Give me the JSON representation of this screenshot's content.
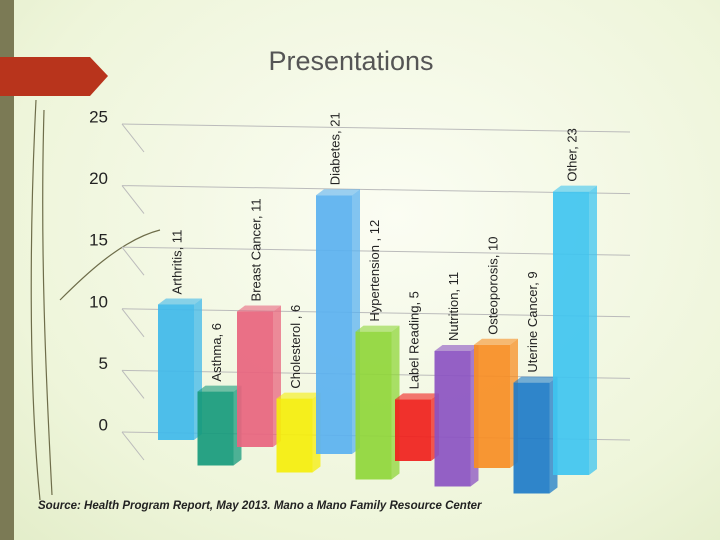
{
  "slide_title": "Presentations",
  "source": "Source: Health Program Report, May 2013. Mano a Mano Family Resource Center",
  "chart_data": {
    "type": "bar3d",
    "values": [
      11,
      6,
      11,
      6,
      21,
      12,
      5,
      11,
      10,
      9,
      23
    ],
    "value_labels": [
      "Arthritis, 11",
      "Asthma, 6",
      "Breast Cancer, 11",
      "Cholesterol , 6",
      "Diabetes, 21",
      "Hypertension , 12",
      "Label Reading, 5",
      "Nutrition, 11",
      "Osteoporosis, 10",
      "Uterine Cancer, 9",
      "Other, 23"
    ],
    "colors": [
      "#3fb8ea",
      "#179a7c",
      "#e8647e",
      "#f5ee0b",
      "#5ab1f0",
      "#8fd63a",
      "#f0201c",
      "#8b52c2",
      "#f78d24",
      "#1e7bc8",
      "#3fc4f0"
    ],
    "ylim": [
      0,
      25
    ],
    "yticks": [
      0,
      5,
      10,
      15,
      20,
      25
    ],
    "grid": true
  }
}
